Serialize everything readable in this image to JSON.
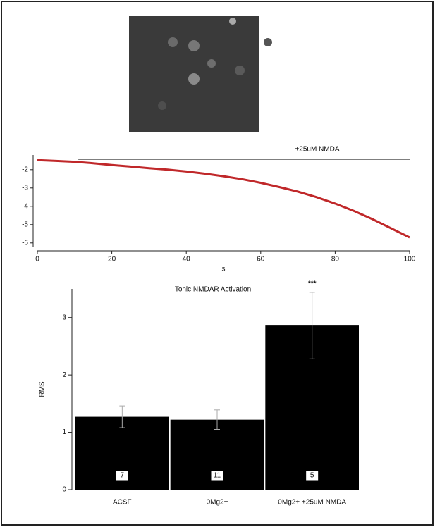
{
  "chart_data": [
    {
      "type": "line",
      "xlabel": "s",
      "x": [
        0,
        5,
        10,
        15,
        20,
        25,
        30,
        35,
        40,
        45,
        50,
        55,
        60,
        65,
        70,
        75,
        80,
        85,
        90,
        95,
        100
      ],
      "values": [
        -1.48,
        -1.52,
        -1.57,
        -1.65,
        -1.75,
        -1.83,
        -1.92,
        -2.0,
        -2.1,
        -2.22,
        -2.36,
        -2.52,
        -2.72,
        -2.95,
        -3.2,
        -3.5,
        -3.85,
        -4.25,
        -4.7,
        -5.2,
        -5.7
      ],
      "color": "#c0282a",
      "xlim": [
        0,
        100
      ],
      "xticks": [
        0,
        20,
        40,
        60,
        80,
        100
      ],
      "ylim": [
        -6.2,
        -1.2
      ],
      "yticks": [
        -2,
        -3,
        -4,
        -5,
        -6
      ],
      "grid": false,
      "annotation": {
        "text": "+25uM NMDA",
        "x_start": 11,
        "x_end": 100
      }
    },
    {
      "type": "bar",
      "title": "Tonic NMDAR Activation",
      "ylabel": "RMS",
      "categories": [
        "ACSF",
        "0Mg2+",
        "0Mg2+ +25uM NMDA"
      ],
      "values": [
        1.27,
        1.22,
        2.86
      ],
      "errors": [
        0.19,
        0.17,
        0.58
      ],
      "n_labels": [
        7,
        11,
        5
      ],
      "significance": [
        null,
        null,
        "***"
      ],
      "color": "#000000",
      "ylim": [
        0,
        3.5
      ],
      "yticks": [
        0,
        1,
        2,
        3
      ],
      "grid": false
    }
  ]
}
